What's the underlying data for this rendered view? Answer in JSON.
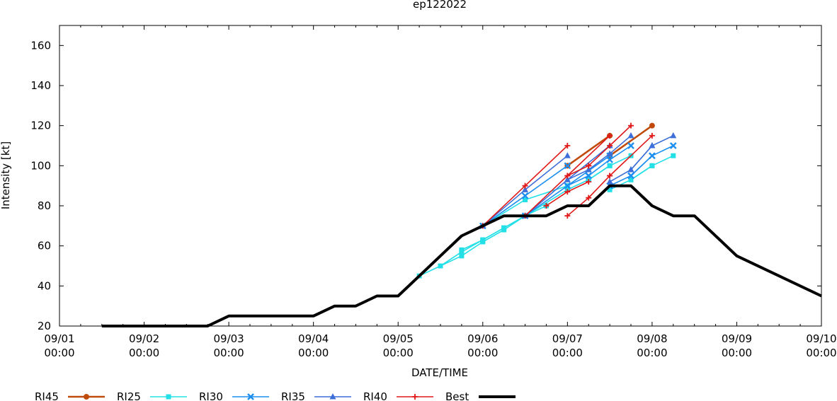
{
  "chart_data": {
    "type": "line",
    "title": "ep122022",
    "xlabel": "DATE/TIME",
    "ylabel": "Intensity [kt]",
    "x_unit": "day",
    "xlim": [
      1,
      10
    ],
    "ylim": [
      20,
      170
    ],
    "yticks": [
      20,
      40,
      60,
      80,
      100,
      120,
      140,
      160
    ],
    "xticks": [
      {
        "x": 1,
        "label1": "09/01",
        "label2": "00:00"
      },
      {
        "x": 2,
        "label1": "09/02",
        "label2": "00:00"
      },
      {
        "x": 3,
        "label1": "09/03",
        "label2": "00:00"
      },
      {
        "x": 4,
        "label1": "09/04",
        "label2": "00:00"
      },
      {
        "x": 5,
        "label1": "09/05",
        "label2": "00:00"
      },
      {
        "x": 6,
        "label1": "09/06",
        "label2": "00:00"
      },
      {
        "x": 7,
        "label1": "09/07",
        "label2": "00:00"
      },
      {
        "x": 8,
        "label1": "09/08",
        "label2": "00:00"
      },
      {
        "x": 9,
        "label1": "09/09",
        "label2": "00:00"
      },
      {
        "x": 10,
        "label1": "09/10",
        "label2": "00:00"
      }
    ],
    "series": [
      {
        "name": "RI45",
        "color": "#c04a0a",
        "marker": "circle",
        "width": 2.5,
        "tracks": [
          [
            [
              7.0,
              100
            ],
            [
              7.5,
              115
            ]
          ],
          [
            [
              7.5,
              105
            ],
            [
              8.0,
              120
            ]
          ]
        ]
      },
      {
        "name": "RI25",
        "color": "#22e0e6",
        "marker": "square",
        "width": 1.6,
        "tracks": [
          [
            [
              5.25,
              45
            ],
            [
              5.5,
              50
            ],
            [
              5.75,
              55
            ],
            [
              6.0,
              62
            ],
            [
              6.25,
              68
            ],
            [
              6.5,
              75
            ]
          ],
          [
            [
              5.5,
              50
            ],
            [
              5.75,
              57
            ],
            [
              6.0,
              63
            ],
            [
              6.25,
              69
            ],
            [
              6.5,
              75
            ]
          ],
          [
            [
              5.75,
              58
            ],
            [
              6.0,
              63
            ],
            [
              6.25,
              69
            ],
            [
              6.5,
              75
            ],
            [
              6.75,
              80
            ]
          ],
          [
            [
              6.0,
              70
            ],
            [
              6.5,
              83
            ],
            [
              7.0,
              90
            ]
          ],
          [
            [
              6.5,
              75
            ],
            [
              7.0,
              88
            ],
            [
              7.25,
              93
            ]
          ],
          [
            [
              7.0,
              88
            ],
            [
              7.25,
              93
            ],
            [
              7.5,
              100
            ]
          ],
          [
            [
              7.25,
              93
            ],
            [
              7.5,
              100
            ],
            [
              7.75,
              105
            ]
          ],
          [
            [
              7.5,
              88
            ],
            [
              7.75,
              93
            ],
            [
              8.0,
              100
            ]
          ],
          [
            [
              7.75,
              93
            ],
            [
              8.0,
              100
            ],
            [
              8.25,
              105
            ]
          ]
        ]
      },
      {
        "name": "RI30",
        "color": "#1c8ff0",
        "marker": "cross",
        "width": 1.6,
        "tracks": [
          [
            [
              6.0,
              70
            ],
            [
              6.5,
              85
            ],
            [
              7.0,
              100
            ]
          ],
          [
            [
              6.5,
              75
            ],
            [
              7.0,
              90
            ],
            [
              7.25,
              95
            ]
          ],
          [
            [
              7.0,
              90
            ],
            [
              7.5,
              105
            ]
          ],
          [
            [
              7.25,
              95
            ],
            [
              7.5,
              103
            ],
            [
              7.75,
              110
            ]
          ],
          [
            [
              7.5,
              90
            ],
            [
              7.75,
              95
            ],
            [
              8.0,
              105
            ]
          ],
          [
            [
              7.75,
              95
            ],
            [
              8.0,
              105
            ],
            [
              8.25,
              110
            ]
          ]
        ]
      },
      {
        "name": "RI35",
        "color": "#3d6fd8",
        "marker": "triangle",
        "width": 1.6,
        "tracks": [
          [
            [
              6.0,
              70
            ],
            [
              6.5,
              88
            ],
            [
              7.0,
              105
            ]
          ],
          [
            [
              6.5,
              75
            ],
            [
              7.0,
              93
            ],
            [
              7.25,
              98
            ]
          ],
          [
            [
              7.0,
              93
            ],
            [
              7.5,
              110
            ]
          ],
          [
            [
              7.25,
              98
            ],
            [
              7.5,
              106
            ],
            [
              7.75,
              115
            ]
          ],
          [
            [
              7.5,
              92
            ],
            [
              7.75,
              98
            ],
            [
              8.0,
              110
            ]
          ],
          [
            [
              7.75,
              98
            ],
            [
              8.0,
              110
            ],
            [
              8.25,
              115
            ]
          ]
        ]
      },
      {
        "name": "RI40",
        "color": "#e01818",
        "marker": "plus",
        "width": 1.6,
        "tracks": [
          [
            [
              6.0,
              70
            ],
            [
              6.5,
              90
            ],
            [
              7.0,
              110
            ]
          ],
          [
            [
              6.5,
              75
            ],
            [
              7.0,
              95
            ],
            [
              7.25,
              100
            ]
          ],
          [
            [
              6.75,
              80
            ],
            [
              7.0,
              87
            ],
            [
              7.25,
              92
            ]
          ],
          [
            [
              7.0,
              75
            ],
            [
              7.25,
              84
            ],
            [
              7.5,
              95
            ]
          ],
          [
            [
              7.0,
              95
            ],
            [
              7.5,
              115
            ]
          ],
          [
            [
              7.25,
              100
            ],
            [
              7.5,
              110
            ],
            [
              7.75,
              120
            ]
          ],
          [
            [
              7.5,
              95
            ],
            [
              8.0,
              115
            ]
          ]
        ]
      },
      {
        "name": "Best",
        "color": "#000000",
        "marker": "none",
        "width": 4,
        "tracks": [
          [
            [
              1.5,
              20
            ],
            [
              2.75,
              20
            ],
            [
              3.0,
              25
            ],
            [
              4.0,
              25
            ],
            [
              4.25,
              30
            ],
            [
              4.5,
              30
            ],
            [
              4.75,
              35
            ],
            [
              5.0,
              35
            ],
            [
              5.25,
              45
            ],
            [
              5.5,
              55
            ],
            [
              5.75,
              65
            ],
            [
              6.0,
              70
            ],
            [
              6.25,
              75
            ],
            [
              6.5,
              75
            ],
            [
              6.75,
              75
            ],
            [
              7.0,
              80
            ],
            [
              7.25,
              80
            ],
            [
              7.5,
              90
            ],
            [
              7.75,
              90
            ],
            [
              8.0,
              80
            ],
            [
              8.25,
              75
            ],
            [
              8.5,
              75
            ],
            [
              9.0,
              55
            ],
            [
              10.0,
              35
            ]
          ]
        ]
      }
    ],
    "legend": {
      "position": "bottom",
      "entries": [
        {
          "label": "RI45",
          "color": "#c04a0a",
          "marker": "circle",
          "width": 2.5
        },
        {
          "label": "RI25",
          "color": "#22e0e6",
          "marker": "square",
          "width": 1.6
        },
        {
          "label": "RI30",
          "color": "#1c8ff0",
          "marker": "cross",
          "width": 1.6
        },
        {
          "label": "RI35",
          "color": "#3d6fd8",
          "marker": "triangle",
          "width": 1.6
        },
        {
          "label": "RI40",
          "color": "#e01818",
          "marker": "plus",
          "width": 1.6
        },
        {
          "label": "Best",
          "color": "#000000",
          "marker": "none",
          "width": 4
        }
      ]
    }
  }
}
